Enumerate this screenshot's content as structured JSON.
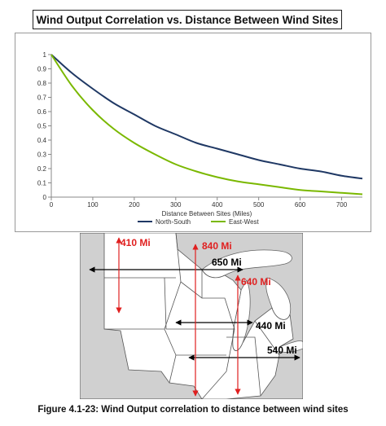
{
  "chart_data": {
    "type": "line",
    "title": "Wind Output Correlation vs. Distance Between Wind Sites",
    "xlabel": "Distance Between Sites (Miles)",
    "ylabel": "",
    "xlim": [
      0,
      750
    ],
    "ylim": [
      0,
      1
    ],
    "x_ticks": [
      "0",
      "100",
      "200",
      "300",
      "400",
      "500",
      "600",
      "700"
    ],
    "y_ticks": [
      "0",
      "0.1",
      "0.2",
      "0.3",
      "0.4",
      "0.5",
      "0.6",
      "0.7",
      "0.8",
      "0.9",
      "1"
    ],
    "grid": false,
    "legend_position": "bottom",
    "series": [
      {
        "name": "North-South",
        "color": "#1f3864",
        "x": [
          0,
          50,
          100,
          150,
          200,
          250,
          300,
          350,
          400,
          450,
          500,
          550,
          600,
          650,
          700,
          750
        ],
        "y": [
          1.0,
          0.87,
          0.76,
          0.66,
          0.58,
          0.5,
          0.44,
          0.38,
          0.34,
          0.3,
          0.26,
          0.23,
          0.2,
          0.18,
          0.15,
          0.13
        ]
      },
      {
        "name": "East-West",
        "color": "#7ab800",
        "x": [
          0,
          50,
          100,
          150,
          200,
          250,
          300,
          350,
          400,
          450,
          500,
          550,
          600,
          650,
          700,
          750
        ],
        "y": [
          1.0,
          0.78,
          0.61,
          0.48,
          0.38,
          0.3,
          0.23,
          0.18,
          0.14,
          0.11,
          0.09,
          0.07,
          0.05,
          0.04,
          0.03,
          0.02
        ]
      }
    ]
  },
  "map": {
    "annotations": [
      {
        "label": "410 Mi",
        "color": "#e02020"
      },
      {
        "label": "840 Mi",
        "color": "#e02020"
      },
      {
        "label": "650 Mi",
        "color": "#000000"
      },
      {
        "label": "640 Mi",
        "color": "#e02020"
      },
      {
        "label": "440 Mi",
        "color": "#000000"
      },
      {
        "label": "540 Mi",
        "color": "#000000"
      }
    ]
  },
  "caption": "Figure 4.1-23: Wind Output correlation to distance between wind sites"
}
